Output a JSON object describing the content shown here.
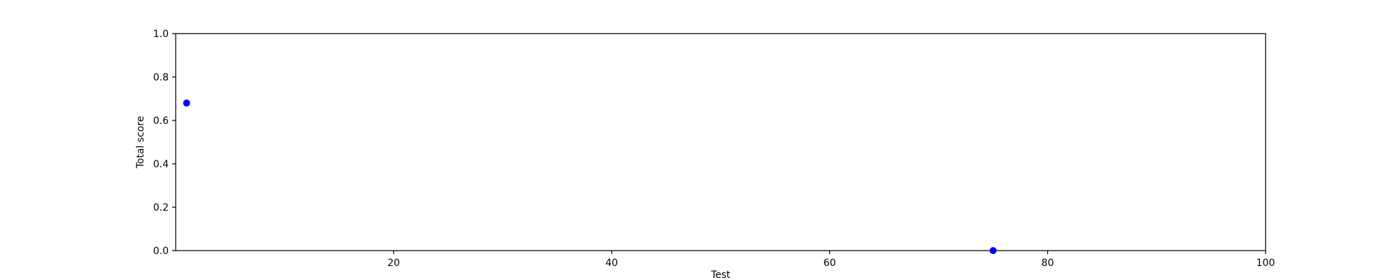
{
  "chart_data": {
    "type": "scatter",
    "title": "",
    "xlabel": "Test",
    "ylabel": "Total score",
    "xlim": [
      0,
      100
    ],
    "ylim": [
      0,
      1
    ],
    "xticks": [
      20,
      40,
      60,
      80,
      100
    ],
    "yticks": [
      0.0,
      0.2,
      0.4,
      0.6,
      0.8,
      1.0
    ],
    "xtick_labels": [
      "20",
      "40",
      "60",
      "80",
      "100"
    ],
    "ytick_labels": [
      "0.0",
      "0.2",
      "0.4",
      "0.6",
      "0.8",
      "1.0"
    ],
    "grid": false,
    "legend": "none",
    "series": [
      {
        "color": "#0000ff",
        "points": [
          {
            "x": 1,
            "y": 0.68
          },
          {
            "x": 75,
            "y": 0.0
          }
        ]
      }
    ]
  }
}
